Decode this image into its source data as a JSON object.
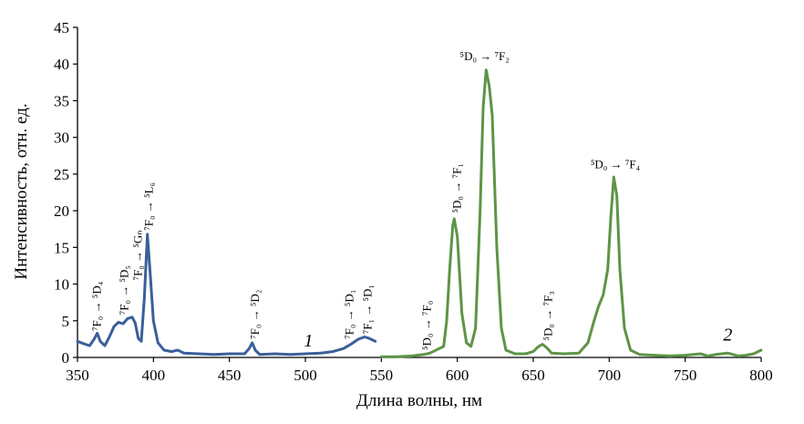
{
  "chart_data": {
    "type": "line",
    "xlabel": "Длина волны, нм",
    "ylabel": "Интенсивность, отн. ед.",
    "xlim": [
      350,
      800
    ],
    "ylim": [
      0,
      45
    ],
    "x_ticks": [
      "350",
      "400",
      "450",
      "500",
      "550",
      "600",
      "650",
      "700",
      "750",
      "800"
    ],
    "y_ticks": [
      "0",
      "5",
      "10",
      "15",
      "20",
      "25",
      "30",
      "35",
      "40",
      "45"
    ],
    "grid": false,
    "legend": "none",
    "series": [
      {
        "name": "1",
        "color": "#3a5f9a",
        "points": [
          [
            350,
            2.2
          ],
          [
            355,
            1.8
          ],
          [
            358,
            1.6
          ],
          [
            361,
            2.5
          ],
          [
            363,
            3.3
          ],
          [
            365,
            2.2
          ],
          [
            368,
            1.6
          ],
          [
            371,
            2.8
          ],
          [
            374,
            4.2
          ],
          [
            377,
            4.8
          ],
          [
            380,
            4.6
          ],
          [
            383,
            5.3
          ],
          [
            386,
            5.5
          ],
          [
            388,
            4.7
          ],
          [
            390,
            2.6
          ],
          [
            392,
            2.2
          ],
          [
            394,
            8.0
          ],
          [
            396,
            16.8
          ],
          [
            398,
            11.0
          ],
          [
            400,
            5.0
          ],
          [
            403,
            2.0
          ],
          [
            407,
            1.0
          ],
          [
            412,
            0.8
          ],
          [
            416,
            1.0
          ],
          [
            420,
            0.6
          ],
          [
            430,
            0.5
          ],
          [
            440,
            0.4
          ],
          [
            450,
            0.5
          ],
          [
            460,
            0.5
          ],
          [
            463,
            1.2
          ],
          [
            465,
            2.0
          ],
          [
            467,
            1.0
          ],
          [
            470,
            0.4
          ],
          [
            480,
            0.5
          ],
          [
            490,
            0.4
          ],
          [
            500,
            0.5
          ],
          [
            510,
            0.6
          ],
          [
            518,
            0.8
          ],
          [
            525,
            1.2
          ],
          [
            530,
            1.8
          ],
          [
            535,
            2.5
          ],
          [
            539,
            2.8
          ],
          [
            542,
            2.6
          ],
          [
            546,
            2.2
          ]
        ]
      },
      {
        "name": "2",
        "color": "#5e9447",
        "points": [
          [
            550,
            0.1
          ],
          [
            560,
            0.1
          ],
          [
            570,
            0.2
          ],
          [
            578,
            0.4
          ],
          [
            582,
            0.6
          ],
          [
            585,
            0.9
          ],
          [
            588,
            1.2
          ],
          [
            591,
            1.5
          ],
          [
            593,
            5.0
          ],
          [
            595,
            12.0
          ],
          [
            597,
            18.0
          ],
          [
            598,
            18.9
          ],
          [
            600,
            16.5
          ],
          [
            603,
            6.0
          ],
          [
            606,
            2.0
          ],
          [
            609,
            1.5
          ],
          [
            612,
            4.0
          ],
          [
            615,
            20.0
          ],
          [
            617,
            34.0
          ],
          [
            619,
            39.2
          ],
          [
            621,
            37.0
          ],
          [
            623,
            33.0
          ],
          [
            626,
            15.0
          ],
          [
            629,
            4.0
          ],
          [
            632,
            1.0
          ],
          [
            638,
            0.5
          ],
          [
            645,
            0.5
          ],
          [
            650,
            0.8
          ],
          [
            653,
            1.4
          ],
          [
            656,
            1.8
          ],
          [
            659,
            1.3
          ],
          [
            662,
            0.6
          ],
          [
            670,
            0.5
          ],
          [
            680,
            0.6
          ],
          [
            686,
            2.0
          ],
          [
            690,
            5.0
          ],
          [
            693,
            7.0
          ],
          [
            696,
            8.5
          ],
          [
            699,
            12.0
          ],
          [
            701,
            19.0
          ],
          [
            703,
            24.6
          ],
          [
            705,
            22.0
          ],
          [
            707,
            12.0
          ],
          [
            710,
            4.0
          ],
          [
            714,
            1.0
          ],
          [
            720,
            0.4
          ],
          [
            730,
            0.3
          ],
          [
            740,
            0.2
          ],
          [
            750,
            0.3
          ],
          [
            760,
            0.5
          ],
          [
            765,
            0.2
          ],
          [
            770,
            0.4
          ],
          [
            778,
            0.6
          ],
          [
            785,
            0.2
          ],
          [
            790,
            0.3
          ],
          [
            795,
            0.5
          ],
          [
            800,
            1.0
          ]
        ]
      }
    ],
    "series_labels": [
      {
        "text": "1",
        "x": 502,
        "y": 1.5
      },
      {
        "text": "2",
        "x": 778,
        "y": 2.3
      }
    ],
    "annotations": [
      {
        "text": "⁷F₀ → ⁵D₄",
        "x": 363,
        "y": 3.6,
        "rotation": -90
      },
      {
        "text": "⁷F₀ → ⁵D₅",
        "x": 381,
        "y": 5.8,
        "rotation": -90
      },
      {
        "text": "⁷F₀ → ⁵Gₙ",
        "x": 390,
        "y": 10.5,
        "rotation": -90
      },
      {
        "text": "⁷F₀ → ⁵L₆",
        "x": 397,
        "y": 17.3,
        "rotation": -90
      },
      {
        "text": "⁷F₀ → ⁵D₂",
        "x": 467,
        "y": 2.5,
        "rotation": -90
      },
      {
        "text": "⁷F₀ → ⁵D₁",
        "x": 529,
        "y": 2.5,
        "rotation": -90
      },
      {
        "text": "⁷F₁ → ⁵D₁",
        "x": 541,
        "y": 3.2,
        "rotation": -90
      },
      {
        "text": "⁵D₀ → ⁷F₀",
        "x": 580,
        "y": 1.0,
        "rotation": -90
      },
      {
        "text": "⁵D₀ → ⁷F₁",
        "x": 600,
        "y": 19.7,
        "rotation": -90
      },
      {
        "text": "⁵D₀ → ⁷F₂",
        "x": 618,
        "y": 40.5,
        "rotation": 0
      },
      {
        "text": "⁵D₀ → ⁷F₃",
        "x": 660,
        "y": 2.3,
        "rotation": -90
      },
      {
        "text": "⁵D₀ → ⁷F₄",
        "x": 704,
        "y": 25.8,
        "rotation": 0
      }
    ]
  }
}
